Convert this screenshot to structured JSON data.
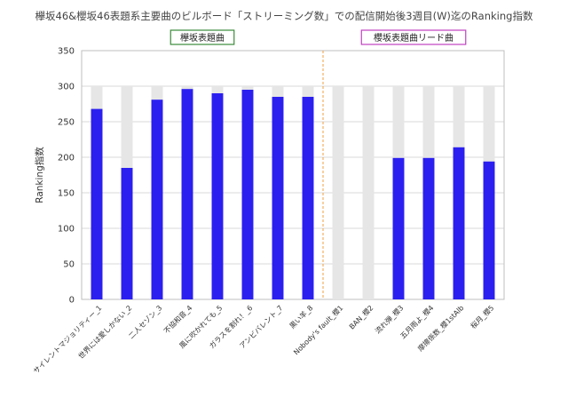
{
  "chart_data": {
    "type": "bar",
    "title": "欅坂46&櫻坂46表題系主要曲のビルボード「ストリーミング数」での配信開始後3週目(W)迄のRanking指数",
    "ylabel": "Ranking指数",
    "xlabel": "",
    "ylim": [
      0,
      350
    ],
    "yticks": [
      0,
      50,
      100,
      150,
      200,
      250,
      300,
      350
    ],
    "grid": true,
    "categories": [
      "サイレントマジョリティー_1",
      "世界には愛しかない_2",
      "二人セゾン_3",
      "不協和音_4",
      "風に吹かれても_5",
      "ガラスを割れ！_6",
      "アンビバレント_7",
      "黒い羊_8",
      "Nobody's fault_櫻1",
      "BAN_櫻2",
      "流れ弾_櫻3",
      "五月雨よ_櫻4",
      "摩擦係数_櫻1stAlb",
      "桜月_櫻5"
    ],
    "series": [
      {
        "name": "",
        "color": "#2b1ff0",
        "values": [
          268,
          185,
          281,
          296,
          290,
          295,
          285,
          285,
          0,
          0,
          199,
          199,
          214,
          194
        ]
      },
      {
        "name": "",
        "color": "#e6e6e6",
        "values": [
          300,
          300,
          300,
          300,
          300,
          300,
          300,
          300,
          300,
          300,
          300,
          300,
          300,
          300
        ]
      }
    ],
    "divider_after_index": 7,
    "group_labels": [
      {
        "text": "欅坂表題曲",
        "border_color": "#3a8a3a",
        "start": 0,
        "end": 7
      },
      {
        "text": "櫻坂表題曲リード曲",
        "border_color": "#c040c0",
        "start": 8,
        "end": 13
      }
    ]
  }
}
